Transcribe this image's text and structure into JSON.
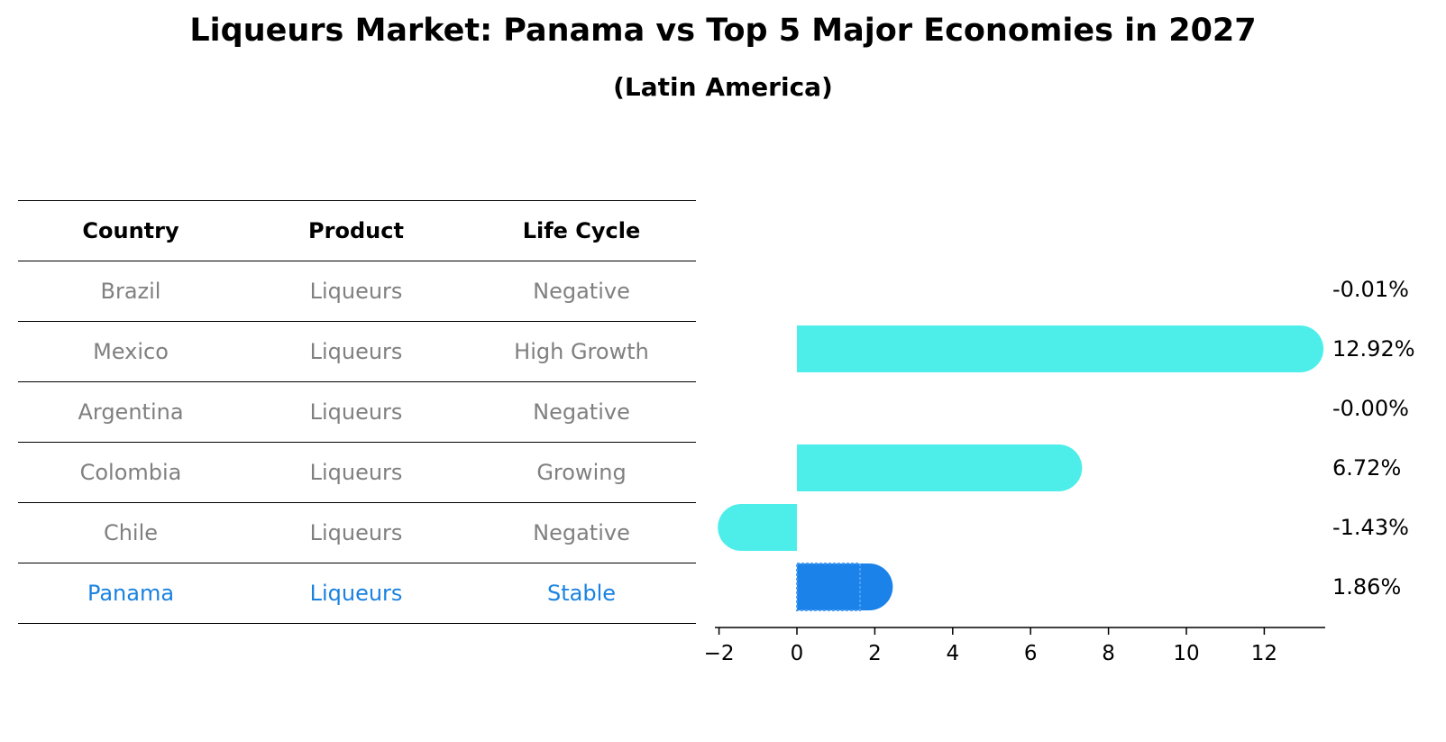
{
  "title": "Liqueurs Market: Panama vs Top 5 Major Economies in 2027",
  "subtitle": "(Latin America)",
  "table": {
    "headers": [
      "Country",
      "Product",
      "Life Cycle"
    ],
    "rows": [
      {
        "country": "Brazil",
        "product": "Liqueurs",
        "life_cycle": "Negative"
      },
      {
        "country": "Mexico",
        "product": "Liqueurs",
        "life_cycle": "High Growth"
      },
      {
        "country": "Argentina",
        "product": "Liqueurs",
        "life_cycle": "Negative"
      },
      {
        "country": "Colombia",
        "product": "Liqueurs",
        "life_cycle": "Growing"
      },
      {
        "country": "Chile",
        "product": "Liqueurs",
        "life_cycle": "Negative"
      },
      {
        "country": "Panama",
        "product": "Liqueurs",
        "life_cycle": "Stable"
      }
    ]
  },
  "colors": {
    "bar": "#4deeea",
    "highlight": "#1a82e8",
    "highlight_text": "#1a82e0",
    "muted_text": "#808080"
  },
  "chart_data": {
    "type": "bar",
    "orientation": "horizontal",
    "categories": [
      "Brazil",
      "Mexico",
      "Argentina",
      "Colombia",
      "Chile",
      "Panama"
    ],
    "values": [
      -0.01,
      12.92,
      -0.0,
      6.72,
      -1.43,
      1.86
    ],
    "value_labels": [
      "-0.01%",
      "12.92%",
      "-0.00%",
      "6.72%",
      "-1.43%",
      "1.86%"
    ],
    "highlight_category": "Panama",
    "xticks": [
      -2,
      0,
      2,
      4,
      6,
      8,
      10,
      12
    ],
    "xlim": [
      -2.2,
      13.7
    ],
    "grid": false
  }
}
